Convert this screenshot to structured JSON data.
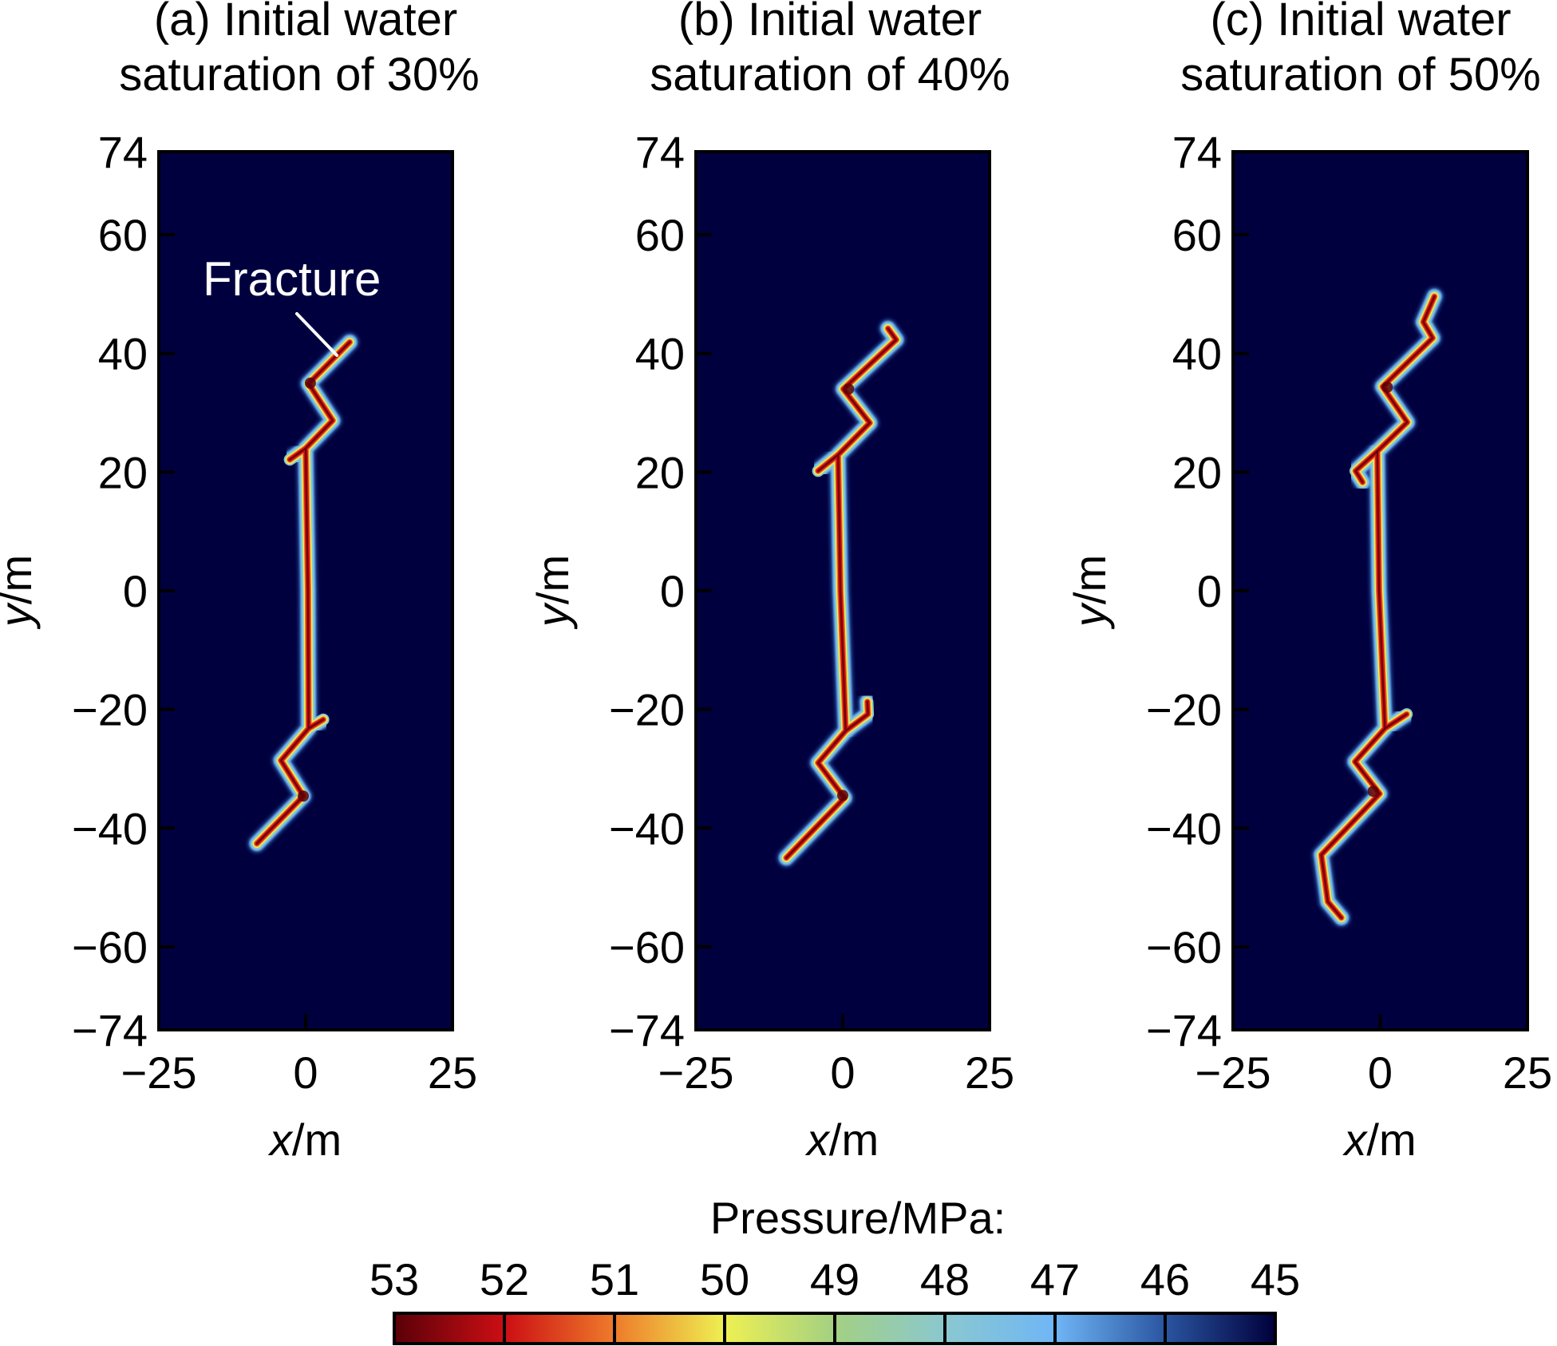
{
  "chart_data": {
    "type": "heatmap",
    "description": "Pressure field around a hydraulic fracture for three initial water saturations",
    "colorbar": {
      "title": "Pressure/MPa:",
      "ticks": [
        "53",
        "52",
        "51",
        "50",
        "49",
        "48",
        "47",
        "46",
        "45"
      ],
      "range": [
        45,
        53
      ],
      "colors": {
        "53": "#5a0008",
        "52": "#cc0e14",
        "51": "#ee7b2a",
        "50": "#eef052",
        "49": "#a3d083",
        "48": "#8ac8d0",
        "47": "#6fb6f6",
        "46": "#2a55a0",
        "45": "#00003c"
      },
      "background_color": "#00003f"
    },
    "panels": [
      {
        "id": "a",
        "title_line1": "(a)  Initial water",
        "title_line2": "saturation of 30%",
        "xlabel_var": "x",
        "xlabel_unit": "/m",
        "ylabel_var": "y",
        "ylabel_unit": "/m",
        "xlim": [
          -25,
          25
        ],
        "ylim": [
          -74,
          74
        ],
        "xticks": [
          -25,
          0,
          25
        ],
        "xtick_labels": [
          "−25",
          "0",
          "25"
        ],
        "yticks": [
          74,
          60,
          40,
          20,
          0,
          -20,
          -40,
          -60,
          -74
        ],
        "ytick_labels": [
          "74",
          "60",
          "40",
          "20",
          "0",
          "−20",
          "−40",
          "−60",
          "−74"
        ],
        "annotation": {
          "text": "Fracture",
          "points_to": [
            5.5,
            40.5
          ]
        },
        "fracture_paths": [
          [
            [
              7.5,
              41.9
            ],
            [
              0.5,
              34.9
            ],
            [
              4.6,
              28.7
            ],
            [
              0.0,
              24.0
            ],
            [
              0.4,
              0.0
            ],
            [
              0.5,
              -23.2
            ],
            [
              -4.2,
              -28.6
            ],
            [
              -0.4,
              -34.6
            ],
            [
              -8.3,
              -42.6
            ]
          ],
          [
            [
              0.0,
              24.0
            ],
            [
              -2.7,
              22.1
            ]
          ],
          [
            [
              0.5,
              -23.2
            ],
            [
              3.0,
              -21.7
            ]
          ]
        ],
        "pressure_blobs": [
          [
            0.8,
            35.0
          ],
          [
            -0.4,
            -34.6
          ]
        ]
      },
      {
        "id": "b",
        "title_line1": "(b) Initial water",
        "title_line2": "saturation of 40%",
        "xlabel_var": "x",
        "xlabel_unit": "/m",
        "ylabel_var": "y",
        "ylabel_unit": "/m",
        "xlim": [
          -25,
          25
        ],
        "ylim": [
          -74,
          74
        ],
        "xticks": [
          -25,
          0,
          25
        ],
        "xtick_labels": [
          "−25",
          "0",
          "25"
        ],
        "yticks": [
          74,
          60,
          40,
          20,
          0,
          -20,
          -40,
          -60,
          -74
        ],
        "ytick_labels": [
          "74",
          "60",
          "40",
          "20",
          "0",
          "−20",
          "−40",
          "−60",
          "−74"
        ],
        "fracture_paths": [
          [
            [
              7.7,
              44.2
            ],
            [
              9.1,
              42.3
            ],
            [
              0.1,
              34.0
            ],
            [
              4.6,
              28.3
            ],
            [
              -0.8,
              22.9
            ],
            [
              -0.4,
              0.0
            ],
            [
              0.5,
              -23.6
            ],
            [
              -4.2,
              -29.0
            ],
            [
              0.3,
              -34.9
            ],
            [
              -9.6,
              -45.0
            ]
          ],
          [
            [
              -0.8,
              22.9
            ],
            [
              -4.2,
              20.2
            ]
          ],
          [
            [
              0.5,
              -23.6
            ],
            [
              4.3,
              -20.8
            ],
            [
              4.2,
              -18.7
            ]
          ]
        ],
        "pressure_blobs": [
          [
            1.0,
            34.0
          ],
          [
            0.0,
            -34.5
          ]
        ]
      },
      {
        "id": "c",
        "title_line1": "(c) Initial water",
        "title_line2": "saturation of 50%",
        "xlabel_var": "x",
        "xlabel_unit": "/m",
        "ylabel_var": "y",
        "ylabel_unit": "/m",
        "xlim": [
          -25,
          25
        ],
        "ylim": [
          -74,
          74
        ],
        "xticks": [
          -25,
          0,
          25
        ],
        "xtick_labels": [
          "−25",
          "0",
          "25"
        ],
        "yticks": [
          74,
          60,
          40,
          20,
          0,
          -20,
          -40,
          -60,
          -74
        ],
        "ytick_labels": [
          "74",
          "60",
          "40",
          "20",
          "0",
          "−20",
          "−40",
          "−60",
          "−74"
        ],
        "fracture_paths": [
          [
            [
              9.2,
              49.6
            ],
            [
              7.3,
              45.3
            ],
            [
              8.9,
              42.6
            ],
            [
              0.4,
              34.4
            ],
            [
              4.6,
              28.4
            ],
            [
              -0.5,
              23.5
            ],
            [
              -0.2,
              0.0
            ],
            [
              0.8,
              -23.2
            ],
            [
              -4.3,
              -28.8
            ],
            [
              -0.1,
              -34.2
            ],
            [
              -10.0,
              -44.5
            ],
            [
              -8.9,
              -52.4
            ],
            [
              -6.6,
              -55.1
            ]
          ],
          [
            [
              -0.5,
              23.5
            ],
            [
              -4.2,
              20.2
            ],
            [
              -3.0,
              18.3
            ]
          ],
          [
            [
              0.8,
              -23.2
            ],
            [
              4.5,
              -20.8
            ]
          ]
        ],
        "pressure_blobs": [
          [
            1.2,
            34.3
          ],
          [
            -1.2,
            -33.8
          ]
        ]
      }
    ]
  }
}
